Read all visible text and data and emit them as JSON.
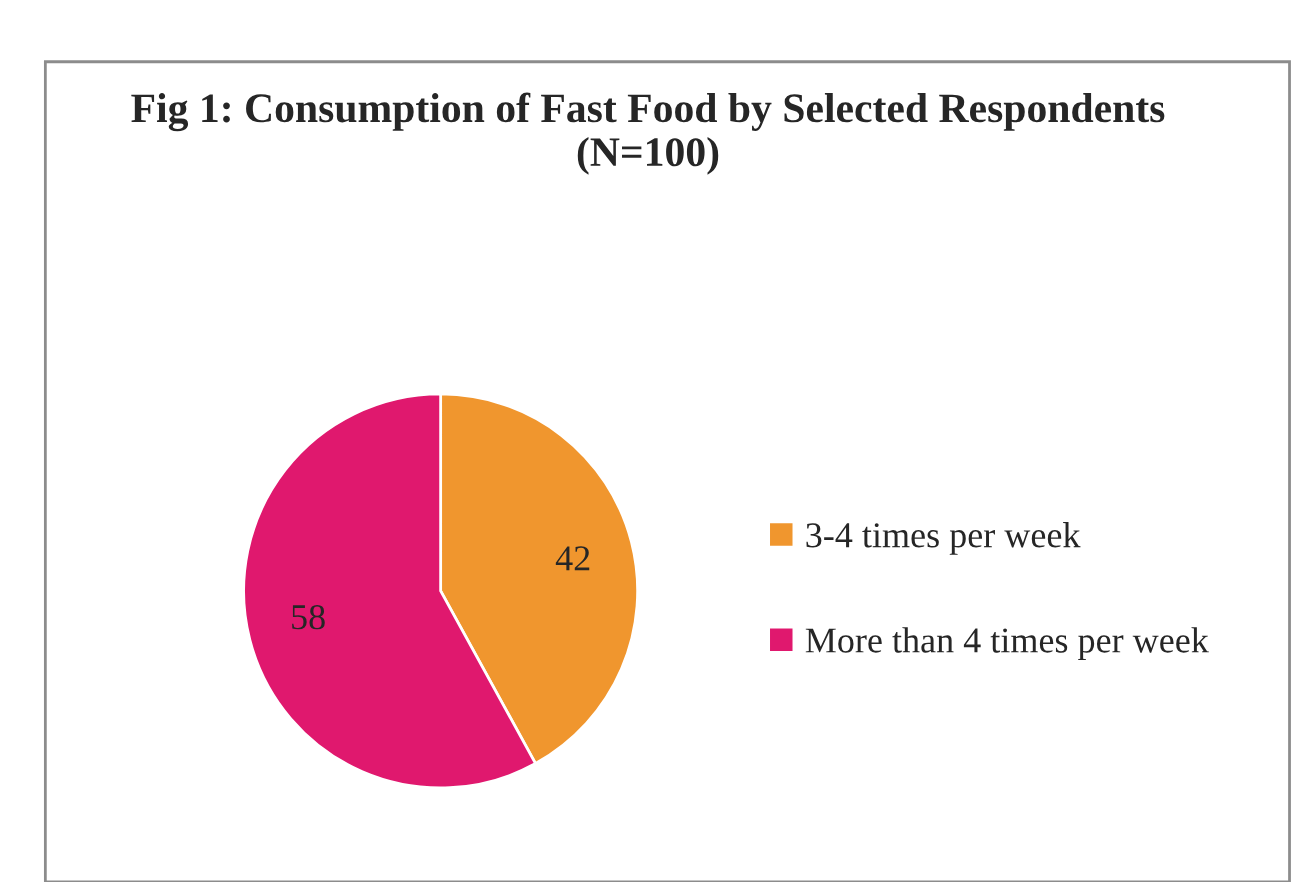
{
  "chart_data": {
    "type": "pie",
    "title": "Fig 1: Consumption of Fast Food by Selected Respondents\n(N=100)",
    "categories": [
      "3-4 times per week",
      "More than 4 times per week"
    ],
    "values": [
      42,
      58
    ],
    "colors": [
      "#f0962e",
      "#e0186e"
    ],
    "data_labels": true,
    "legend": "right"
  }
}
